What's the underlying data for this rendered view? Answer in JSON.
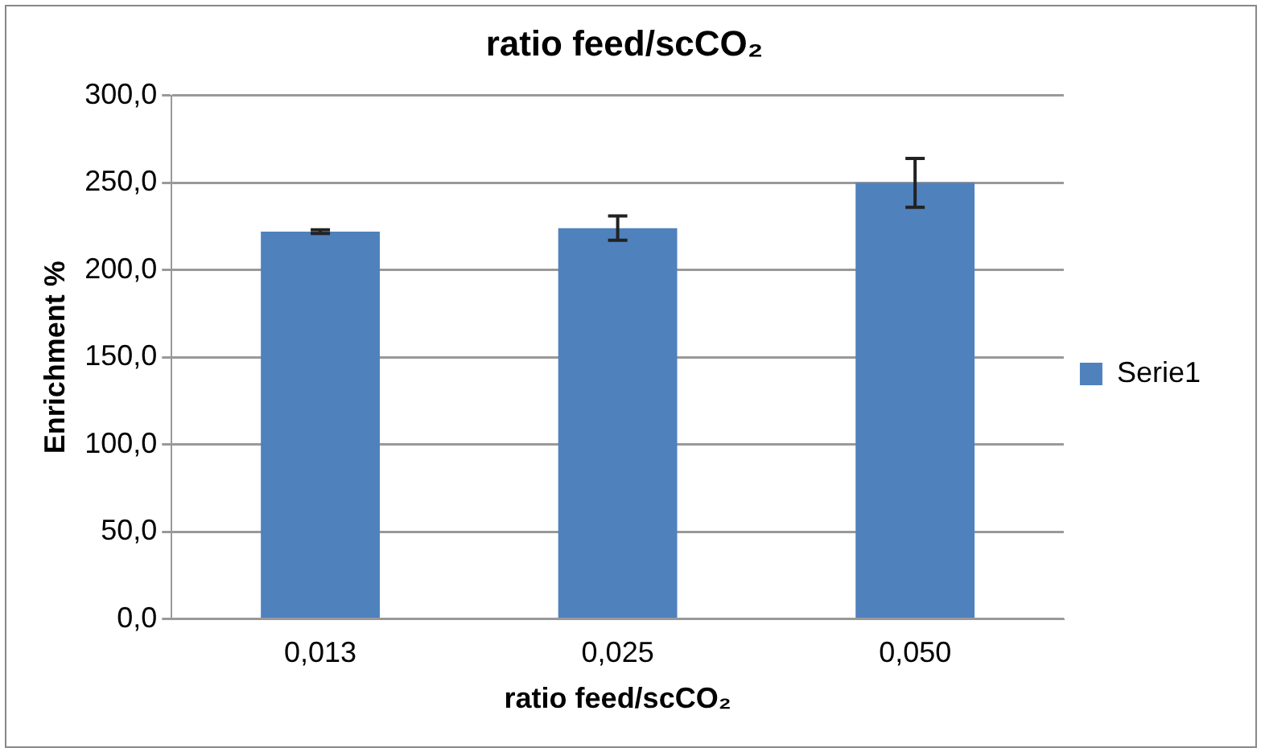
{
  "chart_data": {
    "type": "bar",
    "title": "ratio feed/scCO₂",
    "xlabel": "ratio feed/scCO₂",
    "ylabel": "Enrichment %",
    "categories": [
      "0,013",
      "0,025",
      "0,050"
    ],
    "series": [
      {
        "name": "Serie1",
        "color": "#4f81bd",
        "values": [
          222,
          224,
          250
        ],
        "errors": [
          1,
          7,
          14
        ]
      }
    ],
    "ylim": [
      0,
      300
    ],
    "yticks": [
      {
        "value": 0,
        "label": "0,0"
      },
      {
        "value": 50,
        "label": "50,0"
      },
      {
        "value": 100,
        "label": "100,0"
      },
      {
        "value": 150,
        "label": "150,0"
      },
      {
        "value": 200,
        "label": "200,0"
      },
      {
        "value": 250,
        "label": "250,0"
      },
      {
        "value": 300,
        "label": "300,0"
      }
    ],
    "grid": "y",
    "legend": "right"
  }
}
